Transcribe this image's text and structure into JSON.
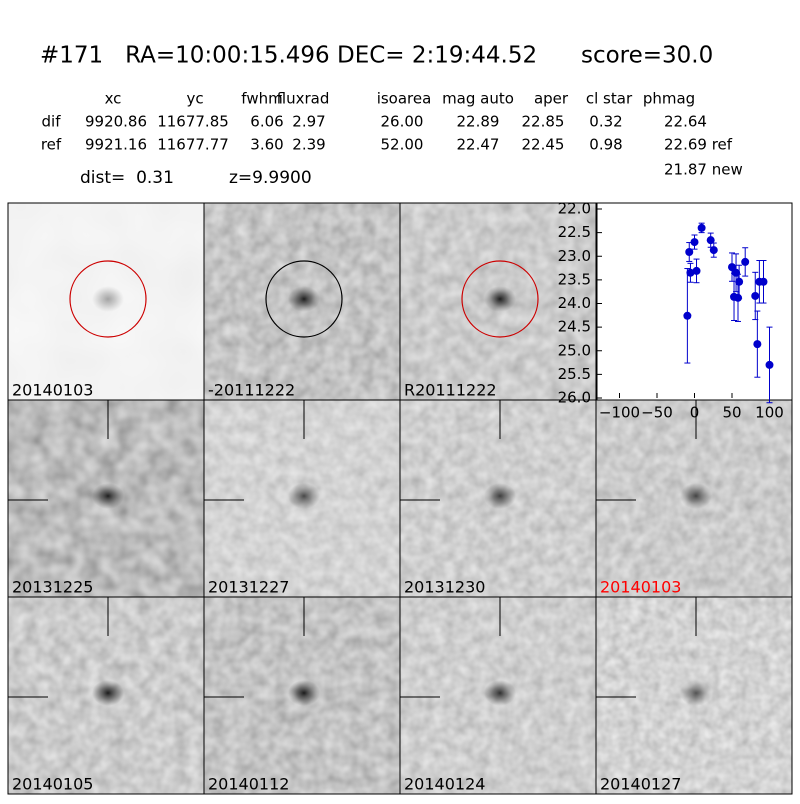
{
  "title": "#171   RA=10:00:15.496 DEC= 2:19:44.52      score=30.0",
  "table": {
    "columns": [
      "xc",
      "yc",
      "fwhm",
      "fluxrad",
      "isoarea",
      "mag auto",
      "aper",
      "cl star",
      "phmag"
    ],
    "rows": [
      [
        "dif",
        "9920.86",
        "11677.85",
        "6.06",
        "2.97",
        "26.00",
        "22.89",
        "22.85",
        "0.32",
        "22.64"
      ],
      [
        "ref",
        "9921.16",
        "11677.77",
        "3.60",
        "2.39",
        "52.00",
        "22.47",
        "22.45",
        "0.98",
        "22.69 ref"
      ]
    ],
    "extra": "21.87 new"
  },
  "dist": "dist=  0.31",
  "z": "z=9.9900",
  "stamps": [
    "20140103",
    "-20111222",
    "R20111222",
    "20131225",
    "20131227",
    "20131230",
    "20140103",
    "20140105",
    "20140112",
    "20140124",
    "20140127"
  ],
  "chart_data": {
    "type": "scatter",
    "color": "#0000cc",
    "x": [
      -9.5,
      -7,
      -5.4,
      0,
      2.7,
      9.5,
      21.6,
      25.7,
      50,
      52.7,
      55.4,
      59.5,
      58,
      67.6,
      81,
      83.8,
      86.5,
      92,
      100
    ],
    "values": [
      24.26,
      22.91,
      23.35,
      22.7,
      23.31,
      22.4,
      22.66,
      22.87,
      23.23,
      23.86,
      23.35,
      23.54,
      23.88,
      23.12,
      23.84,
      24.86,
      23.54,
      23.54,
      25.3
    ],
    "errors": [
      1.0,
      0.2,
      0.2,
      0.15,
      0.25,
      0.1,
      0.15,
      0.15,
      0.3,
      0.5,
      0.4,
      0.35,
      0.5,
      0.3,
      0.5,
      0.7,
      0.45,
      0.45,
      0.8
    ],
    "xlim": [
      -130,
      130
    ],
    "ylim": [
      26.0,
      22.0
    ],
    "xticks": [
      {
        "value": -100,
        "label": "−100"
      },
      {
        "value": -50,
        "label": "−50"
      },
      0,
      50,
      100
    ],
    "yticks": [
      {
        "value": 22.0,
        "label": "22.0"
      },
      22.5,
      {
        "value": 23.0,
        "label": "23.0"
      },
      23.5,
      {
        "value": 24.0,
        "label": "24.0"
      },
      24.5,
      {
        "value": 25.0,
        "label": "25.0"
      },
      25.5,
      {
        "value": 26.0,
        "label": "26.0"
      }
    ]
  }
}
